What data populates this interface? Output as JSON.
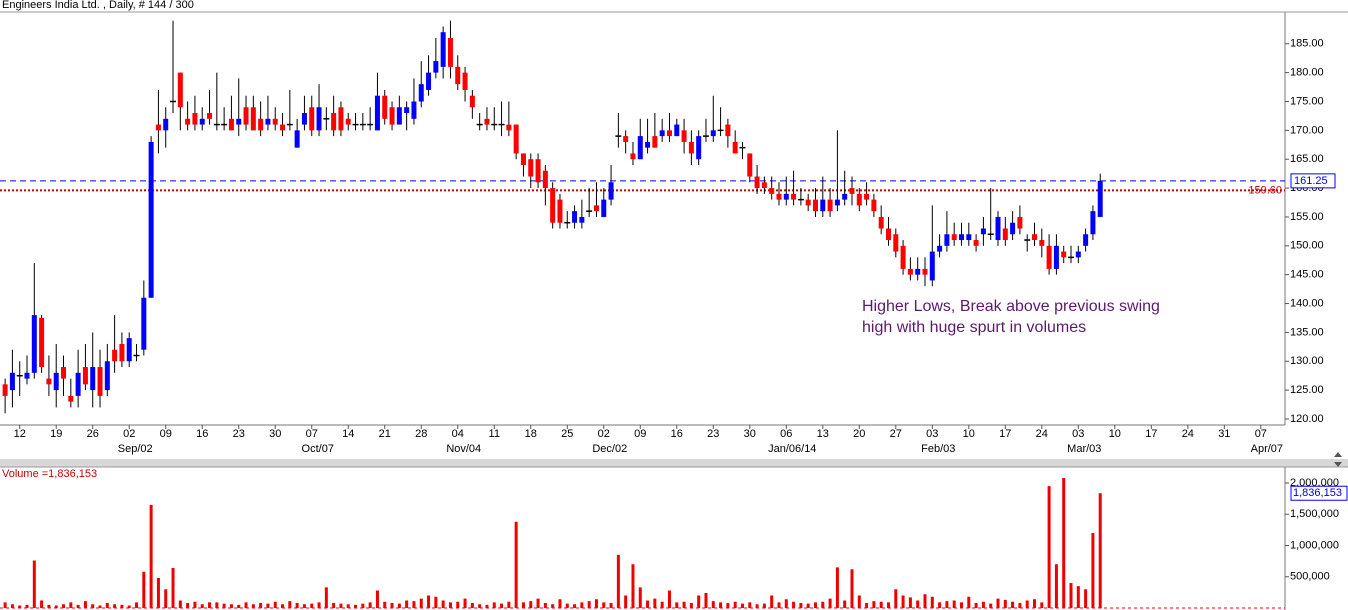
{
  "chart_data": {
    "type": "candlestick",
    "title": "Engineers India Ltd. , Daily, # 144 / 300",
    "up_color": "#0000ff",
    "down_color": "#ff0000",
    "open": [
      126,
      125,
      127.5,
      127,
      128,
      137.5,
      127,
      125,
      129,
      124,
      124,
      129,
      125,
      129,
      125,
      132,
      133,
      130,
      131,
      132,
      141,
      171,
      170,
      175,
      180,
      172,
      173,
      171,
      173,
      171,
      171,
      172,
      171,
      174,
      174,
      172,
      171,
      172,
      171,
      171,
      167,
      171,
      174,
      170,
      172,
      173,
      174,
      172,
      171,
      171,
      171,
      170,
      176,
      174,
      171,
      173,
      172,
      175,
      177,
      180,
      181,
      186,
      181,
      180,
      176,
      171,
      172,
      171,
      171,
      171,
      171,
      166,
      165,
      165,
      163,
      160,
      158,
      154,
      154,
      154,
      156,
      157,
      155,
      158,
      169,
      169,
      166,
      165,
      167,
      169,
      169,
      170,
      169,
      170,
      168,
      165,
      169,
      169,
      170,
      171,
      168,
      167,
      166,
      162,
      161,
      160,
      159,
      158,
      159,
      158,
      158,
      158,
      156,
      158,
      157,
      158,
      160,
      159,
      159,
      158,
      155,
      153,
      152,
      150,
      146,
      145,
      146,
      144,
      149,
      150,
      152,
      151,
      151,
      151,
      152,
      152,
      151,
      153,
      152,
      155,
      151,
      152,
      151,
      150,
      146,
      149,
      148,
      148,
      150,
      152,
      155
    ],
    "high": [
      127,
      132,
      130,
      131,
      147,
      138,
      131,
      133,
      131,
      127,
      132,
      133,
      135,
      132,
      133,
      138,
      135,
      135,
      133,
      144,
      169,
      177,
      174,
      189,
      180,
      175,
      176,
      174,
      177,
      180,
      174,
      176,
      179,
      176,
      176,
      175,
      176,
      174,
      173,
      177,
      172,
      176,
      176,
      178,
      174,
      176,
      175,
      173,
      173,
      173,
      174,
      180,
      177,
      175,
      176,
      175,
      179,
      182,
      183,
      186,
      188,
      189,
      183,
      181,
      177,
      173,
      174,
      174,
      175,
      175,
      171,
      166,
      166,
      166,
      164,
      161,
      159,
      156,
      157,
      158,
      160,
      161,
      160,
      164,
      173,
      170,
      168,
      172,
      172,
      173,
      172,
      173,
      172,
      172,
      170,
      170,
      172,
      176,
      174,
      172,
      170,
      168,
      166,
      164,
      162,
      162,
      161,
      162,
      163,
      160,
      159,
      160,
      162,
      160,
      170,
      163,
      162,
      160,
      161,
      159,
      157,
      155,
      153,
      151,
      148,
      148,
      148,
      157,
      152,
      156,
      154,
      154,
      154,
      152,
      155,
      160,
      156,
      155,
      156,
      157,
      152,
      154,
      153,
      152,
      152,
      150,
      150,
      150,
      153,
      157,
      162.5
    ],
    "low": [
      121,
      122,
      124,
      126,
      127,
      128,
      124,
      122,
      124,
      122,
      122,
      125,
      122,
      122,
      124,
      128,
      129,
      129,
      130,
      131,
      141,
      166,
      167,
      173,
      170,
      170,
      170,
      170,
      171,
      170,
      170,
      170,
      169,
      170,
      170,
      169,
      170,
      170,
      169,
      170,
      167,
      170,
      169,
      169,
      170,
      169,
      169,
      170,
      170,
      170,
      170,
      170,
      171,
      170,
      171,
      170,
      171,
      174,
      176,
      179,
      179,
      179,
      177,
      175,
      172,
      170,
      170,
      170,
      169,
      169,
      165,
      162,
      160,
      160,
      157,
      153,
      153,
      153,
      153,
      153,
      155,
      155,
      155,
      157,
      167,
      166,
      164,
      165,
      166,
      167,
      168,
      168,
      169,
      166,
      164,
      164,
      168,
      168,
      169,
      167,
      166,
      165,
      161,
      159,
      159,
      158,
      157,
      157,
      157,
      157,
      156,
      155,
      155,
      155,
      156,
      157,
      157,
      156,
      157,
      155,
      152,
      150,
      148,
      145,
      144,
      144,
      143,
      143,
      148,
      149,
      150,
      150,
      150,
      149,
      150,
      151,
      150,
      150,
      151,
      152,
      149,
      150,
      148,
      145,
      145,
      147,
      147,
      147,
      149,
      151,
      155
    ],
    "close": [
      124,
      128,
      127.5,
      128,
      138,
      129,
      126,
      128,
      127,
      123,
      128,
      126,
      129,
      124,
      130,
      130,
      130,
      134,
      131,
      141,
      168,
      170,
      172,
      175,
      174,
      171,
      171,
      172,
      172,
      171,
      171,
      170,
      172,
      171,
      170,
      170,
      172,
      171,
      170,
      171,
      170,
      173,
      170,
      174,
      172,
      170,
      170,
      171,
      171,
      171,
      171,
      176,
      172,
      171,
      174,
      174,
      175,
      178,
      180,
      182,
      187,
      181,
      178,
      177,
      174,
      171,
      171,
      171,
      171,
      170,
      166,
      164,
      162,
      161,
      160,
      154,
      154,
      154,
      156,
      155,
      156,
      156,
      158,
      161,
      169,
      168,
      165,
      169,
      168,
      167,
      170,
      169,
      171,
      168,
      166,
      169,
      169,
      170,
      170,
      169,
      166,
      167,
      162,
      160,
      160,
      159,
      158,
      159,
      158,
      158,
      157,
      156,
      158,
      156,
      158,
      159,
      159,
      157,
      158,
      156,
      153,
      151,
      149,
      146,
      145,
      146,
      145,
      149,
      150,
      152,
      151,
      152,
      152,
      150,
      153,
      152,
      155,
      151,
      154,
      153,
      151,
      151,
      150,
      146,
      150,
      148,
      148,
      149,
      152,
      156,
      161.25
    ],
    "xlim": [
      -0.7,
      174.9
    ],
    "xticks": [
      {
        "value": 2,
        "label": "12"
      },
      {
        "value": 7,
        "label": "19"
      },
      {
        "value": 12,
        "label": "26"
      },
      {
        "value": 17,
        "label": "02"
      },
      {
        "value": 22,
        "label": "09"
      },
      {
        "value": 27,
        "label": "16"
      },
      {
        "value": 32,
        "label": "23"
      },
      {
        "value": 37,
        "label": "30"
      },
      {
        "value": 42,
        "label": "07"
      },
      {
        "value": 47,
        "label": "14"
      },
      {
        "value": 52,
        "label": "21"
      },
      {
        "value": 57,
        "label": "28"
      },
      {
        "value": 62,
        "label": "04"
      },
      {
        "value": 67,
        "label": "11"
      },
      {
        "value": 72,
        "label": "18"
      },
      {
        "value": 77,
        "label": "25"
      },
      {
        "value": 82,
        "label": "02"
      },
      {
        "value": 87,
        "label": "09"
      },
      {
        "value": 92,
        "label": "16"
      },
      {
        "value": 97,
        "label": "23"
      },
      {
        "value": 102,
        "label": "30"
      },
      {
        "value": 107,
        "label": "06"
      },
      {
        "value": 112,
        "label": "13"
      },
      {
        "value": 117,
        "label": "20"
      },
      {
        "value": 122,
        "label": "27"
      },
      {
        "value": 127,
        "label": "03"
      },
      {
        "value": 132,
        "label": "10"
      },
      {
        "value": 137,
        "label": "17"
      },
      {
        "value": 142,
        "label": "24"
      },
      {
        "value": 147,
        "label": "03"
      },
      {
        "value": 152,
        "label": "10"
      },
      {
        "value": 157,
        "label": "17"
      },
      {
        "value": 162,
        "label": "24"
      },
      {
        "value": 167,
        "label": "31"
      },
      {
        "value": 172,
        "label": "07"
      }
    ],
    "month_labels": [
      {
        "value": 17,
        "label": "Sep/02"
      },
      {
        "value": 42,
        "label": "Oct/07"
      },
      {
        "value": 62,
        "label": "Nov/04"
      },
      {
        "value": 82,
        "label": "Dec/02"
      },
      {
        "value": 107,
        "label": "Jan/06/14"
      },
      {
        "value": 127,
        "label": "Feb/03"
      },
      {
        "value": 147,
        "label": "Mar/03"
      },
      {
        "value": 172,
        "label": "Apr/07"
      }
    ],
    "ylim": [
      118.96,
      190.5
    ],
    "yticks": [
      {
        "value": 120,
        "label": "120.00"
      },
      {
        "value": 125,
        "label": "125.00"
      },
      {
        "value": 130,
        "label": "130.00"
      },
      {
        "value": 135,
        "label": "135.00"
      },
      {
        "value": 140,
        "label": "140.00"
      },
      {
        "value": 145,
        "label": "145.00"
      },
      {
        "value": 150,
        "label": "150.00"
      },
      {
        "value": 155,
        "label": "155.00"
      },
      {
        "value": 160,
        "label": "160.00"
      },
      {
        "value": 165,
        "label": "165.00"
      },
      {
        "value": 170,
        "label": "170.00"
      },
      {
        "value": 175,
        "label": "175.00"
      },
      {
        "value": 180,
        "label": "180.00"
      },
      {
        "value": 185,
        "label": "185.00"
      }
    ],
    "lines": [
      {
        "value": 161.25,
        "label": "161.25",
        "color": "#0000ff",
        "style": "dashed"
      },
      {
        "value": 159.6,
        "label": "159.60",
        "color": "#c00000",
        "style": "dotted"
      }
    ],
    "annotation": [
      "Higher Lows, Break above previous swing",
      "high with huge spurt in volumes"
    ],
    "volume": {
      "title": "Volume =1,836,153",
      "color": "#ee0000",
      "values": [
        90000,
        60000,
        40000,
        50000,
        760000,
        120000,
        50000,
        40000,
        60000,
        90000,
        50000,
        110000,
        60000,
        40000,
        80000,
        60000,
        50000,
        40000,
        90000,
        580000,
        1650000,
        480000,
        300000,
        640000,
        120000,
        80000,
        100000,
        60000,
        90000,
        90000,
        70000,
        60000,
        50000,
        90000,
        60000,
        80000,
        70000,
        100000,
        60000,
        110000,
        80000,
        60000,
        70000,
        90000,
        330000,
        80000,
        70000,
        60000,
        50000,
        70000,
        90000,
        280000,
        100000,
        80000,
        70000,
        120000,
        110000,
        150000,
        200000,
        180000,
        120000,
        90000,
        100000,
        150000,
        80000,
        60000,
        50000,
        90000,
        70000,
        100000,
        1380000,
        90000,
        110000,
        150000,
        80000,
        60000,
        140000,
        70000,
        60000,
        90000,
        110000,
        140000,
        90000,
        80000,
        850000,
        200000,
        700000,
        330000,
        120000,
        150000,
        100000,
        280000,
        90000,
        100000,
        80000,
        200000,
        240000,
        110000,
        90000,
        80000,
        100000,
        70000,
        90000,
        60000,
        70000,
        200000,
        90000,
        140000,
        100000,
        80000,
        70000,
        90000,
        100000,
        150000,
        650000,
        120000,
        620000,
        200000,
        80000,
        110000,
        100000,
        90000,
        300000,
        200000,
        170000,
        120000,
        220000,
        180000,
        90000,
        110000,
        120000,
        90000,
        180000,
        80000,
        100000,
        70000,
        150000,
        130000,
        100000,
        80000,
        120000,
        140000,
        90000,
        1950000,
        700000,
        2080000,
        400000,
        350000,
        300000,
        1200000,
        1836153
      ],
      "value_labels": {
        "150": "1,836,153"
      },
      "ylim": [
        0,
        2240000
      ],
      "yticks": [
        {
          "value": 500000,
          "label": "500,000"
        },
        {
          "value": 1000000,
          "label": "1,000,000"
        },
        {
          "value": 1500000,
          "label": "1,500,000"
        },
        {
          "value": 2000000,
          "label": "2,000,000"
        }
      ]
    }
  }
}
